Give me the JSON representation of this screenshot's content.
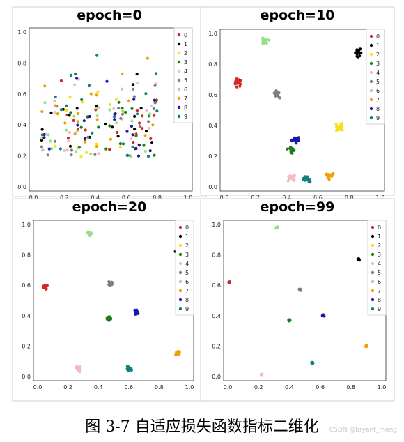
{
  "caption": "图 3-7 自适应损失函数指标二维化",
  "watermark": "CSDN @bryant_meng",
  "chart_data": [
    {
      "type": "scatter",
      "title": "epoch=0",
      "xlim": [
        0.0,
        1.0
      ],
      "ylim": [
        0.0,
        1.0
      ],
      "xticks": [
        "0.0",
        "0.2",
        "0.4",
        "0.6",
        "0.8",
        "1.0"
      ],
      "yticks": [
        "0.0",
        "0.2",
        "0.4",
        "0.6",
        "0.8",
        "1.0"
      ],
      "legend": "right",
      "spread": "random",
      "classes": [
        "0",
        "1",
        "2",
        "3",
        "4",
        "5",
        "6",
        "7",
        "8",
        "9"
      ],
      "colors": [
        "#d62728",
        "#000000",
        "#f4e11c",
        "#1b7d1b",
        "#f5b8c8",
        "#7f7f7f",
        "#98df8a",
        "#f0a000",
        "#1a1aaa",
        "#108080"
      ]
    },
    {
      "type": "scatter",
      "title": "epoch=10",
      "xlim": [
        0.0,
        1.0
      ],
      "ylim": [
        0.0,
        1.0
      ],
      "xticks": [
        "0.0",
        "0.2",
        "0.4",
        "0.6",
        "0.8",
        "1.0"
      ],
      "yticks": [
        "0.0",
        "0.2",
        "0.4",
        "0.6",
        "0.8",
        "1.0"
      ],
      "legend": "right",
      "spread": 0.035,
      "classes": [
        "0",
        "1",
        "2",
        "3",
        "4",
        "5",
        "6",
        "7",
        "8",
        "9"
      ],
      "colors": [
        "#d62728",
        "#000000",
        "#f4e11c",
        "#1b7d1b",
        "#f5b8c8",
        "#7f7f7f",
        "#98df8a",
        "#f0a000",
        "#1a1aaa",
        "#108080"
      ],
      "centers": [
        [
          0.08,
          0.68
        ],
        [
          0.86,
          0.88
        ],
        [
          0.73,
          0.39
        ],
        [
          0.43,
          0.24
        ],
        [
          0.43,
          0.06
        ],
        [
          0.34,
          0.61
        ],
        [
          0.26,
          0.95
        ],
        [
          0.67,
          0.07
        ],
        [
          0.46,
          0.31
        ],
        [
          0.53,
          0.05
        ]
      ]
    },
    {
      "type": "scatter",
      "title": "epoch=20",
      "xlim": [
        0.0,
        1.0
      ],
      "ylim": [
        0.0,
        1.0
      ],
      "xticks": [
        "0.0",
        "0.2",
        "0.4",
        "0.6",
        "0.8",
        "1.0"
      ],
      "yticks": [
        "0.0",
        "0.2",
        "0.4",
        "0.6",
        "0.8",
        "1.0"
      ],
      "legend": "right",
      "spread": 0.022,
      "classes": [
        "0",
        "1",
        "2",
        "3",
        "4",
        "5",
        "6",
        "7",
        "8",
        "9"
      ],
      "colors": [
        "#d62728",
        "#000000",
        "#f4e11c",
        "#1b7d1b",
        "#f5b8c8",
        "#7f7f7f",
        "#98df8a",
        "#f0a000",
        "#1a1aaa",
        "#108080"
      ],
      "centers": [
        [
          0.05,
          0.59
        ],
        [
          0.92,
          0.82
        ],
        [
          0.94,
          0.45
        ],
        [
          0.47,
          0.38
        ],
        [
          0.27,
          0.05
        ],
        [
          0.48,
          0.61
        ],
        [
          0.34,
          0.94
        ],
        [
          0.92,
          0.15
        ],
        [
          0.65,
          0.42
        ],
        [
          0.6,
          0.05
        ]
      ]
    },
    {
      "type": "scatter",
      "title": "epoch=99",
      "xlim": [
        0.0,
        1.0
      ],
      "ylim": [
        0.0,
        1.0
      ],
      "xticks": [
        "0.0",
        "0.2",
        "0.4",
        "0.6",
        "0.8",
        "1.0"
      ],
      "yticks": [
        "0.0",
        "0.2",
        "0.4",
        "0.6",
        "0.8",
        "1.0"
      ],
      "legend": "right",
      "spread": 0.008,
      "classes": [
        "0",
        "1",
        "2",
        "3",
        "4",
        "5",
        "6",
        "7",
        "8",
        "9"
      ],
      "colors": [
        "#d62728",
        "#000000",
        "#f4e11c",
        "#1b7d1b",
        "#f5b8c8",
        "#7f7f7f",
        "#98df8a",
        "#f0a000",
        "#1a1aaa",
        "#108080"
      ],
      "centers": [
        [
          0.01,
          0.62
        ],
        [
          0.85,
          0.77
        ],
        [
          0.99,
          0.45
        ],
        [
          0.4,
          0.37
        ],
        [
          0.22,
          0.01
        ],
        [
          0.47,
          0.57
        ],
        [
          0.32,
          0.98
        ],
        [
          0.9,
          0.2
        ],
        [
          0.62,
          0.4
        ],
        [
          0.55,
          0.09
        ]
      ]
    }
  ]
}
